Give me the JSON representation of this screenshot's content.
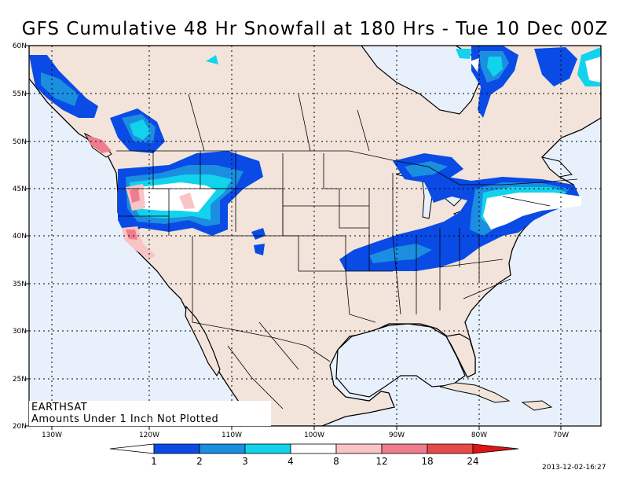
{
  "title": "GFS Cumulative 48 Hr Snowfall at 180 Hrs - Tue 10 Dec 00Z",
  "map": {
    "lat_labels": [
      "60N",
      "55N",
      "50N",
      "45N",
      "40N",
      "35N",
      "30N",
      "25N",
      "20N"
    ],
    "lon_labels": [
      "130W",
      "120W",
      "110W",
      "100W",
      "90W",
      "80W",
      "70W"
    ],
    "credit": "EARTHSAT",
    "note": "Amounts Under 1 Inch Not Plotted",
    "colors": {
      "ocean": "#e8f1fb",
      "land": "#f2e4da"
    }
  },
  "legend": {
    "labels": [
      "1",
      "2",
      "3",
      "4",
      "8",
      "12",
      "18",
      "24"
    ],
    "colors": [
      "#ffffff",
      "#0a4be6",
      "#1b8ee0",
      "#12d3ec",
      "#ffffff",
      "#f8c4c6",
      "#ee7d8e",
      "#e84a4a",
      "#e01414"
    ]
  },
  "timestamp": "2013-12-02-16:27"
}
